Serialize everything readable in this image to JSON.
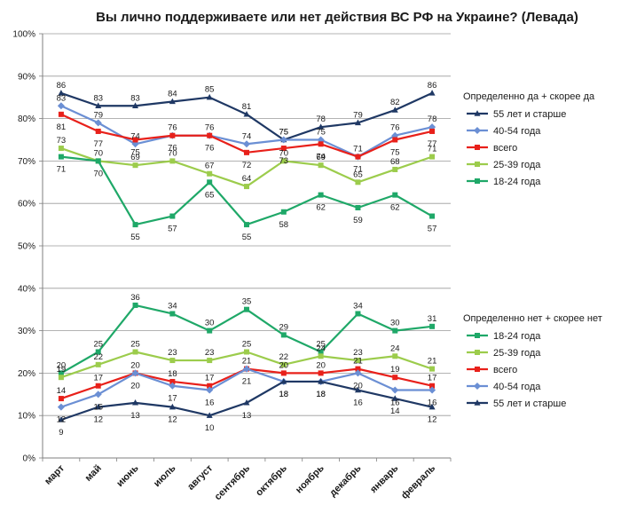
{
  "chart_data": {
    "type": "line",
    "title": "Вы лично поддерживаете или нет действия ВС РФ на Украине? (Левада)",
    "categories": [
      "март",
      "май",
      "июнь",
      "июль",
      "август",
      "сентябрь",
      "октябрь",
      "ноябрь",
      "декабрь",
      "январь",
      "февраль"
    ],
    "yticks": [
      "0%",
      "10%",
      "20%",
      "30%",
      "40%",
      "50%",
      "60%",
      "70%",
      "80%",
      "90%",
      "100%"
    ],
    "ylim": [
      0,
      100
    ],
    "grid": true,
    "groups": [
      {
        "title": "Определенно да + скорее да",
        "series": [
          {
            "name": "55 лет и старше",
            "color": "#1f3864",
            "marker": "tri",
            "values": [
              86,
              83,
              83,
              84,
              85,
              81,
              75,
              78,
              79,
              82,
              86
            ]
          },
          {
            "name": "40-54 года",
            "color": "#6b8fd4",
            "marker": "diamond",
            "values": [
              83,
              79,
              74,
              76,
              76,
              74,
              75,
              75,
              71,
              76,
              78
            ]
          },
          {
            "name": "всего",
            "color": "#e8201a",
            "marker": "square",
            "values": [
              81,
              77,
              75,
              76,
              76,
              72,
              73,
              74,
              71,
              75,
              77
            ]
          },
          {
            "name": "25-39 года",
            "color": "#9ccc4c",
            "marker": "square",
            "values": [
              73,
              70,
              69,
              70,
              67,
              64,
              70,
              69,
              65,
              68,
              71
            ]
          },
          {
            "name": "18-24 года",
            "color": "#1fa868",
            "marker": "square",
            "values": [
              71,
              70,
              55,
              57,
              65,
              55,
              58,
              62,
              59,
              62,
              57
            ]
          }
        ]
      },
      {
        "title": "Определенно нет + скорее нет",
        "series": [
          {
            "name": "18-24 года",
            "color": "#1fa868",
            "marker": "square",
            "values": [
              20,
              25,
              36,
              34,
              30,
              35,
              29,
              25,
              34,
              30,
              31
            ]
          },
          {
            "name": "25-39 года",
            "color": "#9ccc4c",
            "marker": "square",
            "values": [
              19,
              22,
              25,
              23,
              23,
              25,
              22,
              24,
              23,
              24,
              21
            ]
          },
          {
            "name": "всего",
            "color": "#e8201a",
            "marker": "square",
            "values": [
              14,
              17,
              20,
              18,
              17,
              21,
              20,
              20,
              21,
              19,
              17
            ]
          },
          {
            "name": "40-54 года",
            "color": "#6b8fd4",
            "marker": "diamond",
            "values": [
              12,
              15,
              20,
              17,
              16,
              21,
              18,
              18,
              20,
              16,
              16
            ]
          },
          {
            "name": "55 лет и старше",
            "color": "#1f3864",
            "marker": "tri",
            "values": [
              9,
              12,
              13,
              12,
              10,
              13,
              18,
              18,
              16,
              14,
              12
            ]
          }
        ]
      }
    ]
  }
}
